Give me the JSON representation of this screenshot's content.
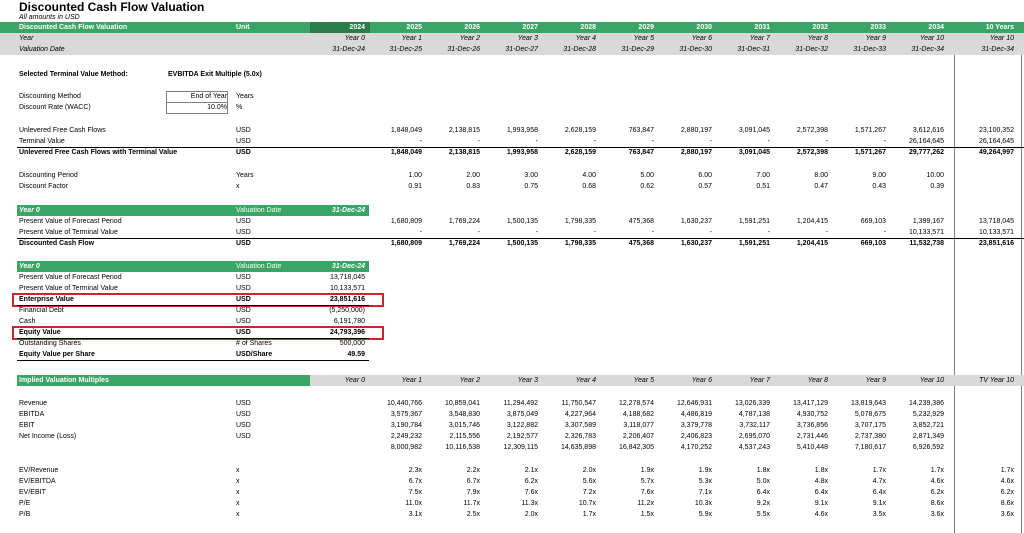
{
  "title": "Discounted Cash Flow Valuation",
  "subtitle": "All amounts in USD",
  "header": {
    "label": "Discounted Cash Flow Valuation",
    "unit_label": "Unit",
    "years": [
      "2024",
      "2025",
      "2026",
      "2027",
      "2028",
      "2029",
      "2030",
      "2031",
      "2032",
      "2033",
      "2034"
    ],
    "total_label": "10 Years"
  },
  "year_row": {
    "label": "Year",
    "values": [
      "Year 0",
      "Year 1",
      "Year 2",
      "Year 3",
      "Year 4",
      "Year 5",
      "Year 6",
      "Year 7",
      "Year 8",
      "Year 9",
      "Year 10"
    ],
    "total": "Year 10"
  },
  "date_row": {
    "label": "Valuation Date",
    "values": [
      "31-Dec-24",
      "31-Dec-25",
      "31-Dec-26",
      "31-Dec-27",
      "31-Dec-28",
      "31-Dec-29",
      "31-Dec-30",
      "31-Dec-31",
      "31-Dec-32",
      "31-Dec-33",
      "31-Dec-34"
    ],
    "total": "31-Dec-34"
  },
  "tv_method": {
    "label": "Selected Terminal Value Method:",
    "value": "EVBITDA Exit Multiple (5.0x)"
  },
  "inputs": {
    "method_label": "Discounting Method",
    "method_value": "End of Year",
    "method_unit": "Years",
    "rate_label": "Discount Rate (WACC)",
    "rate_value": "10.0%",
    "rate_unit": "%"
  },
  "cashflows": [
    {
      "label": "Unlevered Free Cash Flows",
      "unit": "USD",
      "bold": false,
      "values": [
        "",
        "1,848,049",
        "2,138,815",
        "1,993,958",
        "2,628,159",
        "763,847",
        "2,880,197",
        "3,091,045",
        "2,572,398",
        "1,571,267",
        "3,612,616"
      ],
      "total": "23,100,352"
    },
    {
      "label": "Terminal Value",
      "unit": "USD",
      "bold": false,
      "values": [
        "",
        "-",
        "-",
        "-",
        "-",
        "-",
        "-",
        "-",
        "-",
        "-",
        "26,164,645"
      ],
      "total": "26,164,645"
    },
    {
      "label": "Unlevered Free Cash Flows with Terminal Value",
      "unit": "USD",
      "bold": true,
      "values": [
        "",
        "1,848,049",
        "2,138,815",
        "1,993,958",
        "2,628,159",
        "763,847",
        "2,880,197",
        "3,091,045",
        "2,572,398",
        "1,571,267",
        "29,777,262"
      ],
      "total": "49,264,997"
    }
  ],
  "discounting": [
    {
      "label": "Discounting Period",
      "unit": "Years",
      "values": [
        "",
        "1.00",
        "2.00",
        "3.00",
        "4.00",
        "5.00",
        "6.00",
        "7.00",
        "8.00",
        "9.00",
        "10.00"
      ]
    },
    {
      "label": "Discount Factor",
      "unit": "x",
      "values": [
        "",
        "0.91",
        "0.83",
        "0.75",
        "0.68",
        "0.62",
        "0.57",
        "0.51",
        "0.47",
        "0.43",
        "0.39"
      ]
    }
  ],
  "pv_block": {
    "header_label": "Year 0",
    "header_unit": "Valuation Date",
    "header_date": "31-Dec-24",
    "rows": [
      {
        "label": "Present Value of Forecast Period",
        "unit": "USD",
        "bold": false,
        "values": [
          "",
          "1,680,809",
          "1,769,224",
          "1,500,135",
          "1,798,335",
          "475,368",
          "1,630,237",
          "1,591,251",
          "1,204,415",
          "669,103",
          "1,399,167"
        ],
        "total": "13,718,045"
      },
      {
        "label": "Present Value of Terminal Value",
        "unit": "USD",
        "bold": false,
        "values": [
          "",
          "-",
          "-",
          "-",
          "-",
          "-",
          "-",
          "-",
          "-",
          "-",
          "10,133,571"
        ],
        "total": "10,133,571"
      },
      {
        "label": "Discounted Cash Flow",
        "unit": "USD",
        "bold": true,
        "values": [
          "",
          "1,680,809",
          "1,769,224",
          "1,500,135",
          "1,798,335",
          "475,368",
          "1,630,237",
          "1,591,251",
          "1,204,415",
          "669,103",
          "11,532,738"
        ],
        "total": "23,851,616"
      }
    ]
  },
  "ev_block": {
    "header_label": "Year 0",
    "header_unit": "Valuation Date",
    "header_date": "31-Dec-24",
    "rows": [
      {
        "label": "Present Value of Forecast Period",
        "unit": "USD",
        "value": "13,718,045",
        "bold": false
      },
      {
        "label": "Present Value of Terminal Value",
        "unit": "USD",
        "value": "10,133,571",
        "bold": false
      },
      {
        "label": "Enterprise Value",
        "unit": "USD",
        "value": "23,851,616",
        "bold": true
      },
      {
        "label": "Financial Debt",
        "unit": "USD",
        "value": "(5,250,000)",
        "bold": false
      },
      {
        "label": "Cash",
        "unit": "USD",
        "value": "6,191,780",
        "bold": false
      },
      {
        "label": "Equity Value",
        "unit": "USD",
        "value": "24,793,396",
        "bold": true
      },
      {
        "label": "Outstanding Shares",
        "unit": "# of Shares",
        "value": "500,000",
        "bold": false
      },
      {
        "label": "Equity Value per Share",
        "unit": "USD/Share",
        "value": "49.59",
        "bold": true
      }
    ]
  },
  "multiples": {
    "header_label": "Implied Valuation Multiples",
    "columns": [
      "Year 0",
      "Year 1",
      "Year 2",
      "Year 3",
      "Year 4",
      "Year 5",
      "Year 6",
      "Year 7",
      "Year 8",
      "Year 9",
      "Year 10"
    ],
    "total_label": "TV Year 10",
    "financials": [
      {
        "label": "Revenue",
        "unit": "USD",
        "values": [
          "",
          "10,440,766",
          "10,859,041",
          "11,294,492",
          "11,750,547",
          "12,278,574",
          "12,646,931",
          "13,026,339",
          "13,417,129",
          "13,819,643",
          "14,239,386"
        ]
      },
      {
        "label": "EBITDA",
        "unit": "USD",
        "values": [
          "",
          "3,575,367",
          "3,548,830",
          "3,875,049",
          "4,227,964",
          "4,188,682",
          "4,486,819",
          "4,787,138",
          "4,930,752",
          "5,078,675",
          "5,232,929"
        ]
      },
      {
        "label": "EBIT",
        "unit": "USD",
        "values": [
          "",
          "3,190,784",
          "3,015,746",
          "3,122,882",
          "3,307,589",
          "3,118,077",
          "3,379,778",
          "3,732,117",
          "3,736,856",
          "3,707,175",
          "3,852,721"
        ]
      },
      {
        "label": "Net Income (Loss)",
        "unit": "USD",
        "values": [
          "",
          "2,249,232",
          "2,115,556",
          "2,192,577",
          "2,326,783",
          "2,206,407",
          "2,406,823",
          "2,695,070",
          "2,731,446",
          "2,737,380",
          "2,871,349"
        ]
      },
      {
        "label": "",
        "unit": "",
        "values": [
          "",
          "8,000,982",
          "10,116,538",
          "12,309,115",
          "14,635,898",
          "16,842,305",
          "4,170,252",
          "4,537,243",
          "5,410,448",
          "7,180,617",
          "6,926,592"
        ]
      }
    ],
    "ratios": [
      {
        "label": "EV/Revenue",
        "unit": "x",
        "values": [
          "",
          "2.3x",
          "2.2x",
          "2.1x",
          "2.0x",
          "1.9x",
          "1.9x",
          "1.8x",
          "1.8x",
          "1.7x",
          "1.7x"
        ],
        "total": "1.7x"
      },
      {
        "label": "EV/EBITDA",
        "unit": "x",
        "values": [
          "",
          "6.7x",
          "6.7x",
          "6.2x",
          "5.6x",
          "5.7x",
          "5.3x",
          "5.0x",
          "4.8x",
          "4.7x",
          "4.6x"
        ],
        "total": "4.6x"
      },
      {
        "label": "EV/EBIT",
        "unit": "x",
        "values": [
          "",
          "7.5x",
          "7.9x",
          "7.6x",
          "7.2x",
          "7.6x",
          "7.1x",
          "6.4x",
          "6.4x",
          "6.4x",
          "6.2x"
        ],
        "total": "6.2x"
      },
      {
        "label": "P/E",
        "unit": "x",
        "values": [
          "",
          "11.0x",
          "11.7x",
          "11.3x",
          "10.7x",
          "11.2x",
          "10.3x",
          "9.2x",
          "9.1x",
          "9.1x",
          "8.6x"
        ],
        "total": "8.6x"
      },
      {
        "label": "P/B",
        "unit": "x",
        "values": [
          "",
          "3.1x",
          "2.5x",
          "2.0x",
          "1.7x",
          "1.5x",
          "5.9x",
          "5.5x",
          "4.6x",
          "3.5x",
          "3.6x"
        ],
        "total": "3.6x"
      }
    ]
  },
  "colors": {
    "header_green": "#3aa564",
    "header_gray": "#d9d9d9",
    "highlight_red": "#d0242b"
  }
}
